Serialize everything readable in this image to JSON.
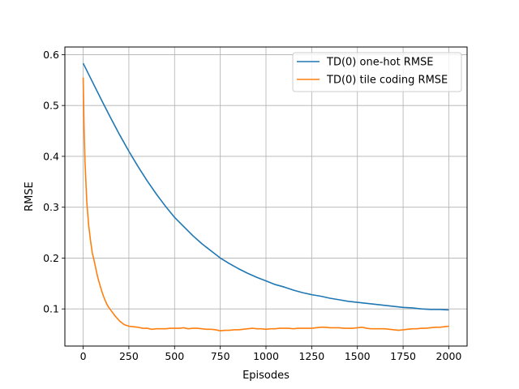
{
  "chart_data": {
    "type": "line",
    "title": "",
    "xlabel": "Episodes",
    "ylabel": "RMSE",
    "xlim": [
      -100,
      2100
    ],
    "ylim": [
      0.027,
      0.615
    ],
    "xticks": [
      0,
      250,
      500,
      750,
      1000,
      1250,
      1500,
      1750,
      2000
    ],
    "yticks": [
      0.1,
      0.2,
      0.3,
      0.4,
      0.5,
      0.6
    ],
    "grid": true,
    "legend_position": "top-right",
    "series": [
      {
        "name": "TD(0) one-hot RMSE",
        "color": "#1f77b4",
        "x": [
          0,
          50,
          100,
          150,
          200,
          250,
          300,
          350,
          400,
          450,
          500,
          550,
          600,
          650,
          700,
          750,
          800,
          850,
          900,
          950,
          1000,
          1050,
          1100,
          1150,
          1200,
          1250,
          1300,
          1350,
          1400,
          1450,
          1500,
          1550,
          1600,
          1650,
          1700,
          1750,
          1800,
          1850,
          1900,
          1950,
          2000
        ],
        "y": [
          0.583,
          0.547,
          0.511,
          0.476,
          0.442,
          0.41,
          0.38,
          0.352,
          0.326,
          0.302,
          0.28,
          0.262,
          0.244,
          0.228,
          0.214,
          0.2,
          0.189,
          0.179,
          0.17,
          0.162,
          0.155,
          0.148,
          0.143,
          0.137,
          0.132,
          0.128,
          0.125,
          0.121,
          0.118,
          0.115,
          0.113,
          0.111,
          0.109,
          0.107,
          0.105,
          0.103,
          0.102,
          0.1,
          0.099,
          0.099,
          0.098
        ]
      },
      {
        "name": "TD(0) tile coding RMSE",
        "color": "#ff7f0e",
        "x": [
          0,
          5,
          10,
          20,
          30,
          40,
          50,
          60,
          70,
          80,
          90,
          100,
          110,
          120,
          130,
          140,
          150,
          175,
          200,
          225,
          250,
          275,
          300,
          325,
          350,
          375,
          400,
          425,
          450,
          475,
          500,
          525,
          550,
          575,
          600,
          625,
          650,
          675,
          700,
          725,
          750,
          775,
          800,
          825,
          850,
          875,
          900,
          925,
          950,
          975,
          1000,
          1025,
          1050,
          1075,
          1100,
          1125,
          1150,
          1175,
          1200,
          1225,
          1250,
          1275,
          1300,
          1325,
          1350,
          1375,
          1400,
          1425,
          1450,
          1475,
          1500,
          1525,
          1550,
          1575,
          1600,
          1625,
          1650,
          1675,
          1700,
          1725,
          1750,
          1775,
          1800,
          1825,
          1850,
          1875,
          1900,
          1925,
          1950,
          1975,
          2000
        ],
        "y": [
          0.555,
          0.455,
          0.39,
          0.31,
          0.265,
          0.235,
          0.21,
          0.195,
          0.178,
          0.162,
          0.149,
          0.137,
          0.126,
          0.117,
          0.109,
          0.103,
          0.098,
          0.086,
          0.076,
          0.069,
          0.066,
          0.065,
          0.064,
          0.062,
          0.062,
          0.06,
          0.061,
          0.061,
          0.061,
          0.062,
          0.062,
          0.062,
          0.063,
          0.061,
          0.062,
          0.062,
          0.061,
          0.06,
          0.06,
          0.059,
          0.057,
          0.058,
          0.058,
          0.059,
          0.059,
          0.06,
          0.061,
          0.062,
          0.061,
          0.061,
          0.06,
          0.061,
          0.061,
          0.062,
          0.062,
          0.062,
          0.061,
          0.062,
          0.062,
          0.062,
          0.062,
          0.063,
          0.064,
          0.064,
          0.063,
          0.063,
          0.063,
          0.062,
          0.062,
          0.062,
          0.063,
          0.064,
          0.062,
          0.061,
          0.061,
          0.061,
          0.061,
          0.06,
          0.059,
          0.058,
          0.059,
          0.06,
          0.061,
          0.061,
          0.062,
          0.062,
          0.063,
          0.064,
          0.064,
          0.065,
          0.066
        ]
      }
    ]
  }
}
